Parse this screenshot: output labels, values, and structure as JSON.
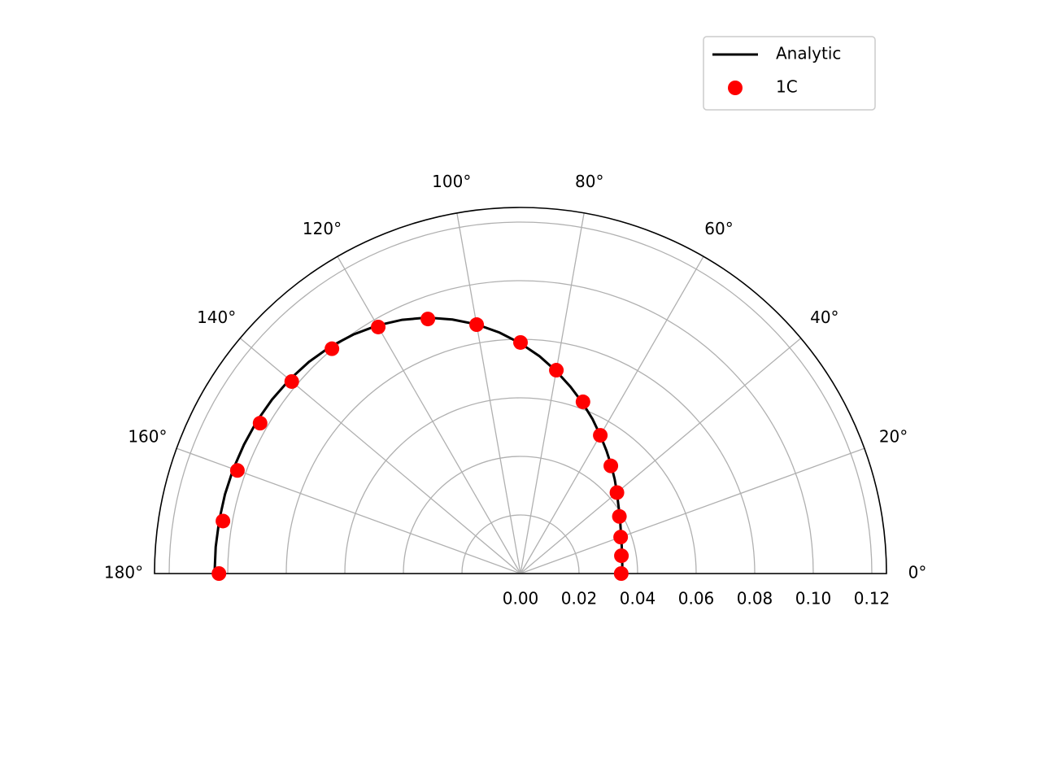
{
  "chart_data": {
    "type": "polar",
    "thetalim": [
      0,
      180
    ],
    "thetaticks": [
      {
        "value": 0,
        "label": "0°"
      },
      {
        "value": 20,
        "label": "20°"
      },
      {
        "value": 40,
        "label": "40°"
      },
      {
        "value": 60,
        "label": "60°"
      },
      {
        "value": 80,
        "label": "80°"
      },
      {
        "value": 100,
        "label": "100°"
      },
      {
        "value": 120,
        "label": "120°"
      },
      {
        "value": 140,
        "label": "140°"
      },
      {
        "value": 160,
        "label": "160°"
      },
      {
        "value": 180,
        "label": "180°"
      }
    ],
    "rlim": [
      0,
      0.125
    ],
    "rticks": [
      {
        "value": 0,
        "label": "0.00"
      },
      0.02,
      0.04,
      0.06,
      0.08,
      {
        "value": 0.1,
        "label": "0.10"
      },
      0.12
    ],
    "grid": true,
    "legend": "upper right",
    "series": [
      {
        "name": "Analytic",
        "color": "#000000",
        "style": "line",
        "x": [
          0,
          5,
          10,
          15,
          20,
          25,
          30,
          35,
          40,
          45,
          50,
          55,
          60,
          65,
          70,
          75,
          80,
          85,
          90,
          95,
          100,
          105,
          110,
          115,
          120,
          125,
          130,
          135,
          140,
          145,
          150,
          155,
          160,
          165,
          170,
          175,
          180
        ],
        "values": [
          0.0347,
          0.0349,
          0.0352,
          0.0358,
          0.0366,
          0.0377,
          0.0392,
          0.0408,
          0.043,
          0.0455,
          0.0482,
          0.0512,
          0.0545,
          0.0582,
          0.062,
          0.066,
          0.0702,
          0.0745,
          0.0786,
          0.0826,
          0.0864,
          0.0898,
          0.093,
          0.0956,
          0.0978,
          0.0996,
          0.1011,
          0.1022,
          0.103,
          0.1036,
          0.104,
          0.1042,
          0.1044,
          0.1045,
          0.1045,
          0.1045,
          0.1045
        ]
      },
      {
        "name": "1C",
        "color": "#ff0000",
        "style": "marker",
        "x": [
          0,
          10,
          20,
          30,
          40,
          50,
          60,
          70,
          80,
          90,
          100,
          110,
          120,
          130,
          140,
          150,
          160,
          170,
          180
        ],
        "values": [
          0.0344,
          0.035,
          0.0364,
          0.039,
          0.043,
          0.048,
          0.0545,
          0.0624,
          0.0705,
          0.0789,
          0.0863,
          0.0925,
          0.0972,
          0.1002,
          0.102,
          0.1027,
          0.1029,
          0.1032,
          0.103
        ]
      }
    ]
  }
}
